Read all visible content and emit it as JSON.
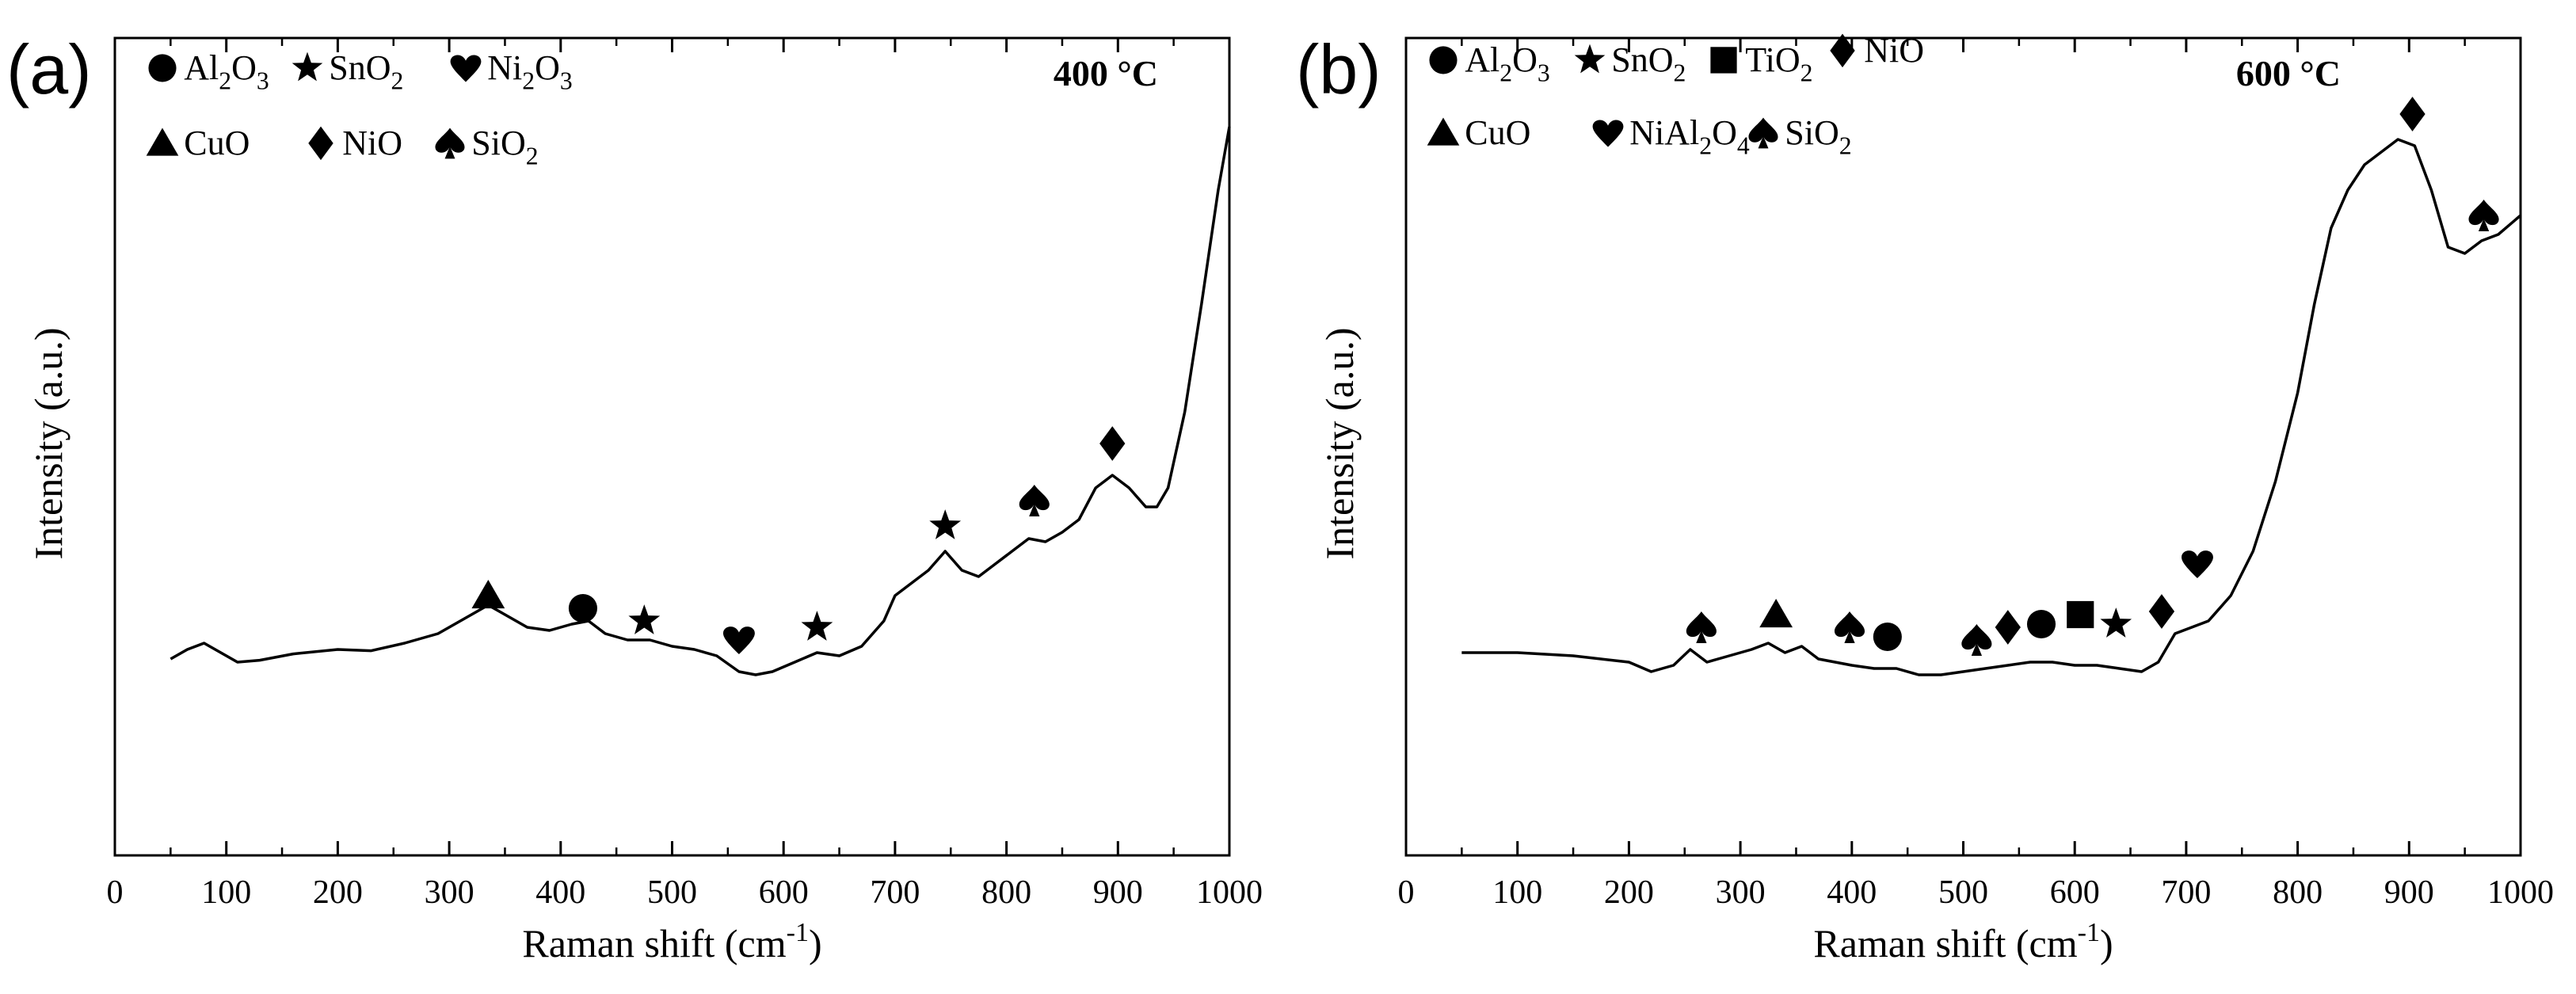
{
  "chart_data": [
    {
      "type": "line",
      "panel_label": "(a)",
      "temperature_label": "400 °C",
      "xlabel": "Raman shift (cm",
      "xlabel_sup": "-1",
      "xlabel_close": ")",
      "ylabel": "Intensity (a.u.)",
      "xlim": [
        0,
        1000
      ],
      "ylim": [
        0,
        100
      ],
      "x_ticks": [
        0,
        100,
        200,
        300,
        400,
        500,
        600,
        700,
        800,
        900,
        1000
      ],
      "legend": [
        {
          "symbol": "circle",
          "label": "Al",
          "sub1": "2",
          "label2": "O",
          "sub2": "3"
        },
        {
          "symbol": "star",
          "label": "SnO",
          "sub1": "2",
          "label2": "",
          "sub2": ""
        },
        {
          "symbol": "heart",
          "label": "Ni",
          "sub1": "2",
          "label2": "O",
          "sub2": "3"
        },
        {
          "symbol": "triangle",
          "label": "CuO",
          "sub1": "",
          "label2": "",
          "sub2": ""
        },
        {
          "symbol": "diamond",
          "label": "NiO",
          "sub1": "",
          "label2": "",
          "sub2": ""
        },
        {
          "symbol": "spade",
          "label": "SiO",
          "sub1": "2",
          "label2": "",
          "sub2": ""
        }
      ],
      "series": [
        {
          "name": "Raman spectrum 400 °C",
          "x": [
            50,
            65,
            80,
            95,
            110,
            130,
            160,
            200,
            230,
            260,
            290,
            320,
            335,
            350,
            370,
            390,
            410,
            425,
            440,
            460,
            480,
            500,
            520,
            540,
            560,
            575,
            590,
            610,
            630,
            650,
            670,
            690,
            700,
            715,
            730,
            745,
            760,
            775,
            790,
            805,
            820,
            835,
            850,
            865,
            880,
            895,
            910,
            925,
            935,
            945,
            960,
            975,
            990,
            1000
          ],
          "y": [
            16,
            17.5,
            18.5,
            17,
            15.5,
            15.8,
            16.8,
            17.5,
            17.3,
            18.5,
            20,
            23,
            24.5,
            23,
            21,
            20.5,
            21.5,
            22,
            20,
            19,
            19,
            18,
            17.5,
            16.5,
            14,
            13.5,
            14,
            15.5,
            17,
            16.5,
            18,
            22,
            26,
            28,
            30,
            33,
            30,
            29,
            31,
            33,
            35,
            34.5,
            36,
            38,
            43,
            45,
            43,
            40,
            40,
            43,
            55,
            72,
            90,
            100
          ]
        }
      ],
      "markers": [
        {
          "symbol": "triangle",
          "x": 335,
          "y": 26
        },
        {
          "symbol": "circle",
          "x": 420,
          "y": 24
        },
        {
          "symbol": "star",
          "x": 475,
          "y": 22
        },
        {
          "symbol": "heart",
          "x": 560,
          "y": 19
        },
        {
          "symbol": "star",
          "x": 630,
          "y": 21
        },
        {
          "symbol": "star",
          "x": 745,
          "y": 37
        },
        {
          "symbol": "spade",
          "x": 825,
          "y": 41
        },
        {
          "symbol": "diamond",
          "x": 895,
          "y": 50
        }
      ]
    },
    {
      "type": "line",
      "panel_label": "(b)",
      "temperature_label": "600 °C",
      "xlabel": "Raman shift (cm",
      "xlabel_sup": "-1",
      "xlabel_close": ")",
      "ylabel": "Intensity (a.u.)",
      "xlim": [
        0,
        1000
      ],
      "ylim": [
        0,
        100
      ],
      "x_ticks": [
        0,
        100,
        200,
        300,
        400,
        500,
        600,
        700,
        800,
        900,
        1000
      ],
      "legend": [
        {
          "symbol": "circle",
          "label": "Al",
          "sub1": "2",
          "label2": "O",
          "sub2": "3"
        },
        {
          "symbol": "star",
          "label": "SnO",
          "sub1": "2",
          "label2": "",
          "sub2": ""
        },
        {
          "symbol": "square",
          "label": "TiO",
          "sub1": "2",
          "label2": "",
          "sub2": ""
        },
        {
          "symbol": "diamond",
          "label": "NiO",
          "sub1": "",
          "label2": "",
          "sub2": ""
        },
        {
          "symbol": "triangle",
          "label": "CuO",
          "sub1": "",
          "label2": "",
          "sub2": ""
        },
        {
          "symbol": "heart",
          "label": "NiAl",
          "sub1": "2",
          "label2": "O",
          "sub2": "4"
        },
        {
          "symbol": "spade",
          "label": "SiO",
          "sub1": "2",
          "label2": "",
          "sub2": ""
        }
      ],
      "series": [
        {
          "name": "Raman spectrum 600 °C",
          "x": [
            50,
            100,
            150,
            200,
            220,
            240,
            255,
            270,
            290,
            310,
            325,
            340,
            355,
            370,
            385,
            400,
            420,
            440,
            460,
            480,
            500,
            520,
            540,
            560,
            580,
            600,
            620,
            640,
            660,
            675,
            690,
            705,
            720,
            740,
            760,
            780,
            800,
            815,
            830,
            845,
            860,
            875,
            890,
            905,
            920,
            935,
            950,
            965,
            980,
            1000
          ],
          "y": [
            17,
            17,
            16.5,
            15.5,
            14,
            15,
            17.5,
            15.5,
            16.5,
            17.5,
            18.5,
            17,
            18,
            16,
            15.5,
            15,
            14.5,
            14.5,
            13.5,
            13.5,
            14,
            14.5,
            15,
            15.5,
            15.5,
            15,
            15,
            14.5,
            14,
            15.5,
            20,
            21,
            22,
            26,
            33,
            44,
            58,
            72,
            84,
            90,
            94,
            96,
            98,
            97,
            90,
            81,
            80,
            82,
            83,
            86
          ]
        }
      ],
      "markers": [
        {
          "symbol": "spade",
          "x": 265,
          "y": 21
        },
        {
          "symbol": "triangle",
          "x": 332,
          "y": 23
        },
        {
          "symbol": "spade",
          "x": 398,
          "y": 21
        },
        {
          "symbol": "circle",
          "x": 432,
          "y": 19.5
        },
        {
          "symbol": "spade",
          "x": 512,
          "y": 19
        },
        {
          "symbol": "diamond",
          "x": 540,
          "y": 21
        },
        {
          "symbol": "circle",
          "x": 570,
          "y": 21.5
        },
        {
          "symbol": "square",
          "x": 605,
          "y": 23
        },
        {
          "symbol": "star",
          "x": 637,
          "y": 21.5
        },
        {
          "symbol": "diamond",
          "x": 678,
          "y": 23.5
        },
        {
          "symbol": "heart",
          "x": 710,
          "y": 31
        },
        {
          "symbol": "diamond",
          "x": 903,
          "y": 102
        },
        {
          "symbol": "spade",
          "x": 967,
          "y": 86
        }
      ]
    }
  ]
}
